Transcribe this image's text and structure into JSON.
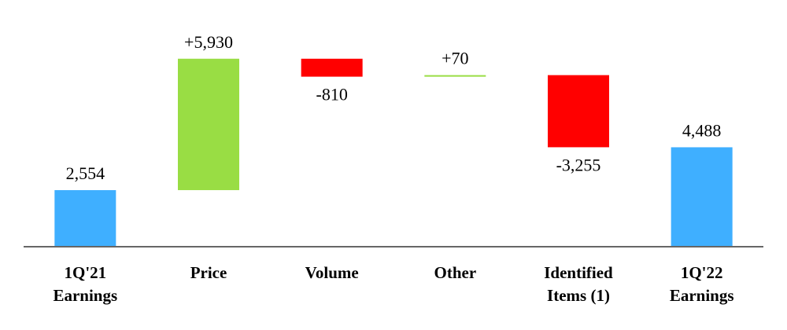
{
  "chart_data": {
    "type": "waterfall",
    "categories": [
      "1Q'21\nEarnings",
      "Price",
      "Volume",
      "Other",
      "Identified\nItems (1)",
      "1Q'22\nEarnings"
    ],
    "values": [
      2554,
      5930,
      -810,
      70,
      -3255,
      4488
    ],
    "value_labels": [
      "2,554",
      "+5,930",
      "-810",
      "+70",
      "-3,255",
      "4,488"
    ],
    "kinds": [
      "total",
      "delta",
      "delta",
      "delta",
      "delta",
      "total"
    ],
    "colors": {
      "total": "#3fafff",
      "increase": "#99dd44",
      "decrease": "#ff0000",
      "axis": "#666666"
    },
    "ylim": [
      0,
      9000
    ],
    "grid": false,
    "title": "",
    "xlabel": "",
    "ylabel": ""
  }
}
